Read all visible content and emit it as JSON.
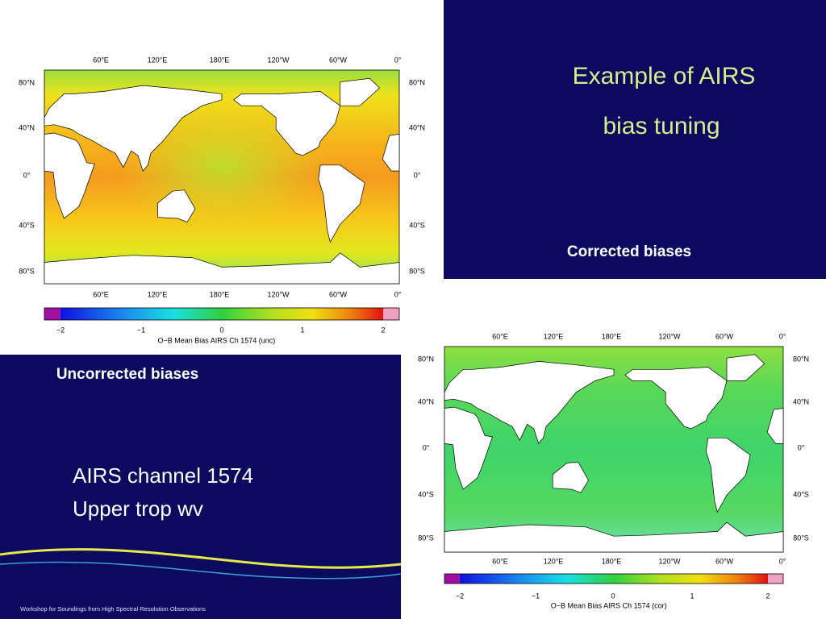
{
  "title": [
    "Example of AIRS",
    "bias tuning"
  ],
  "labels": {
    "corrected": "Corrected biases",
    "uncorrected": "Uncorrected biases"
  },
  "body": [
    "AIRS channel 1574",
    "Upper trop wv"
  ],
  "footer": "Workshop for Soundings from High Spectral Resolution Observations",
  "maps": [
    {
      "longitudes": [
        "60°E",
        "120°E",
        "180°E",
        "120°W",
        "60°W",
        "0°"
      ],
      "latitudes": [
        "80°N",
        "40°N",
        "0°",
        "40°S",
        "80°S"
      ],
      "colorbar_ticks": [
        "−2",
        "−1",
        "0",
        "1",
        "2"
      ],
      "caption": "O−B Mean Bias AIRS Ch 1574 (unc)"
    },
    {
      "longitudes": [
        "60°E",
        "120°E",
        "180°E",
        "120°W",
        "60°W",
        "0°"
      ],
      "latitudes": [
        "80°N",
        "40°N",
        "0°",
        "40°S",
        "80°S"
      ],
      "colorbar_ticks": [
        "−2",
        "−1",
        "0",
        "1",
        "2"
      ],
      "caption": "O−B Mean Bias AIRS Ch 1574 (cor)"
    }
  ]
}
